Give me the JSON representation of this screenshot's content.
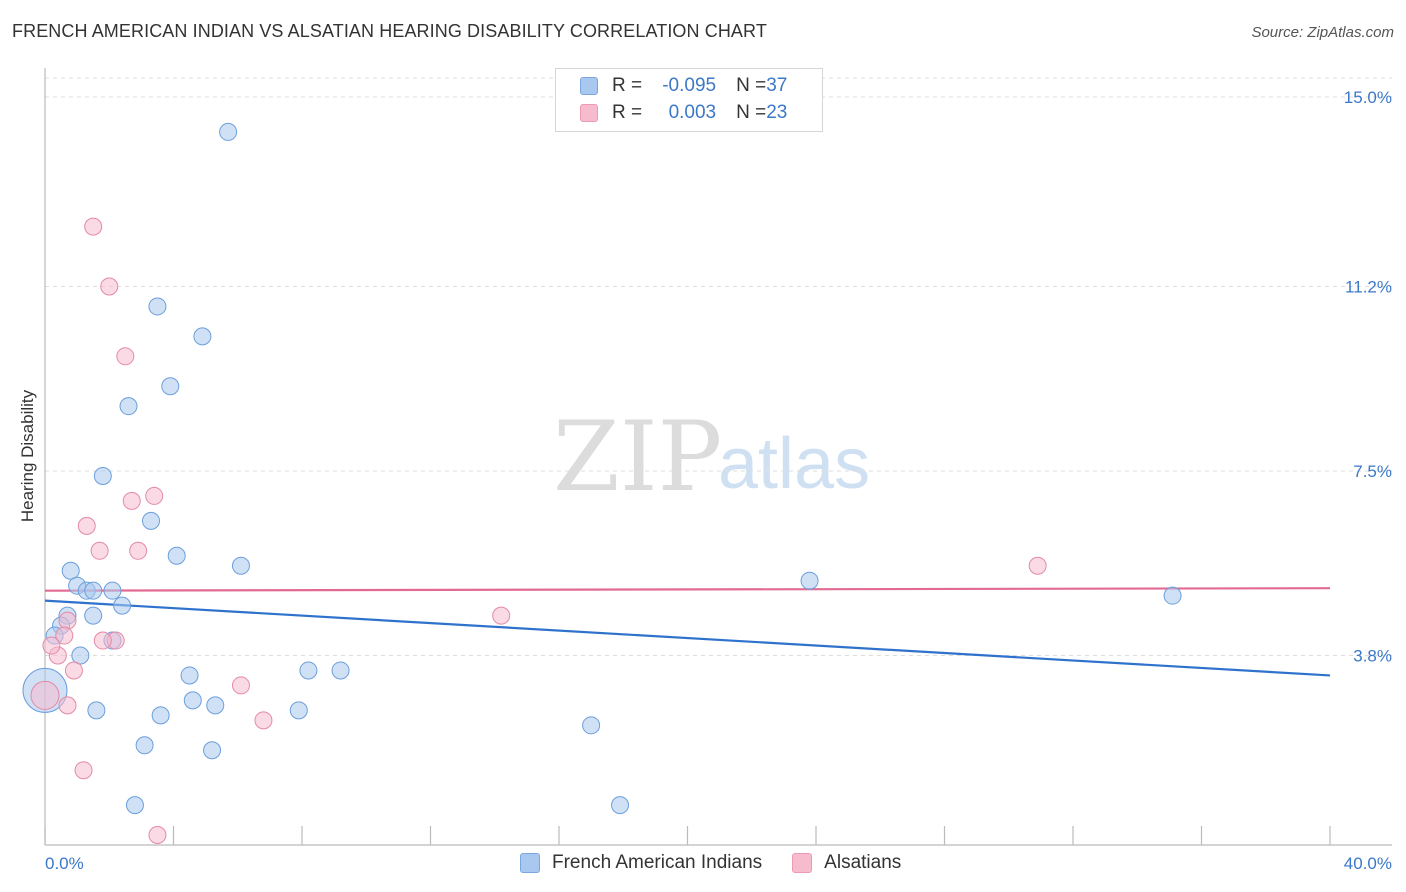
{
  "header": {
    "title": "FRENCH AMERICAN INDIAN VS ALSATIAN HEARING DISABILITY CORRELATION CHART",
    "source": "Source: ZipAtlas.com"
  },
  "watermark": {
    "zip": "ZIP",
    "atlas": "atlas"
  },
  "legend": {
    "rows": [
      {
        "r_label": "R = ",
        "r_value": "-0.095",
        "n_label": "N = ",
        "n_value": "37",
        "color": "#a9c8ef"
      },
      {
        "r_label": "R = ",
        "r_value": "0.003",
        "n_label": "N = ",
        "n_value": "23",
        "color": "#f6bccd"
      }
    ]
  },
  "bottom_legend": [
    {
      "label": "French American Indians",
      "color": "#a9c8ef"
    },
    {
      "label": "Alsatians",
      "color": "#f6bccd"
    }
  ],
  "chart_data": {
    "type": "scatter",
    "title": "FRENCH AMERICAN INDIAN VS ALSATIAN HEARING DISABILITY CORRELATION CHART",
    "xlabel": "",
    "ylabel": "Hearing Disability",
    "xlim": [
      0,
      40
    ],
    "ylim": [
      0,
      15.5
    ],
    "x_tick_labels": [
      "0.0%",
      "40.0%"
    ],
    "y_ticks": [
      3.8,
      7.5,
      11.2,
      15.0
    ],
    "y_tick_labels": [
      "3.8%",
      "7.5%",
      "11.2%",
      "15.0%"
    ],
    "grid": true,
    "legend_position": "top-center",
    "series": [
      {
        "name": "French American Indians",
        "color": "#a9c8ef",
        "stroke": "#6b9fdc",
        "line_color": "#2f72cc",
        "trend": {
          "x": [
            0,
            40
          ],
          "y": [
            4.9,
            3.4
          ]
        },
        "points": [
          {
            "x": 5.7,
            "y": 14.3
          },
          {
            "x": 3.5,
            "y": 10.8
          },
          {
            "x": 4.9,
            "y": 10.2
          },
          {
            "x": 3.9,
            "y": 9.2
          },
          {
            "x": 2.6,
            "y": 8.8
          },
          {
            "x": 1.8,
            "y": 7.4
          },
          {
            "x": 3.3,
            "y": 6.5
          },
          {
            "x": 4.1,
            "y": 5.8
          },
          {
            "x": 6.1,
            "y": 5.6
          },
          {
            "x": 0.8,
            "y": 5.5
          },
          {
            "x": 1.0,
            "y": 5.2
          },
          {
            "x": 1.3,
            "y": 5.1
          },
          {
            "x": 1.5,
            "y": 5.1
          },
          {
            "x": 2.4,
            "y": 4.8
          },
          {
            "x": 1.5,
            "y": 4.6
          },
          {
            "x": 0.7,
            "y": 4.6
          },
          {
            "x": 0.5,
            "y": 4.4
          },
          {
            "x": 0.3,
            "y": 4.2
          },
          {
            "x": 2.1,
            "y": 4.1
          },
          {
            "x": 1.1,
            "y": 3.8
          },
          {
            "x": 0.0,
            "y": 3.1
          },
          {
            "x": 4.5,
            "y": 3.4
          },
          {
            "x": 8.2,
            "y": 3.5
          },
          {
            "x": 9.2,
            "y": 3.5
          },
          {
            "x": 4.6,
            "y": 2.9
          },
          {
            "x": 5.3,
            "y": 2.8
          },
          {
            "x": 7.9,
            "y": 2.7
          },
          {
            "x": 1.6,
            "y": 2.7
          },
          {
            "x": 3.6,
            "y": 2.6
          },
          {
            "x": 17.0,
            "y": 2.4
          },
          {
            "x": 3.1,
            "y": 2.0
          },
          {
            "x": 5.2,
            "y": 1.9
          },
          {
            "x": 2.8,
            "y": 0.8
          },
          {
            "x": 17.9,
            "y": 0.8
          },
          {
            "x": 23.8,
            "y": 5.3
          },
          {
            "x": 35.1,
            "y": 5.0
          },
          {
            "x": 2.1,
            "y": 5.1
          }
        ]
      },
      {
        "name": "Alsatians",
        "color": "#f6bccd",
        "stroke": "#e58aa6",
        "line_color": "#e36b93",
        "trend": {
          "x": [
            0,
            40
          ],
          "y": [
            5.1,
            5.15
          ]
        },
        "points": [
          {
            "x": 1.5,
            "y": 12.4
          },
          {
            "x": 2.0,
            "y": 11.2
          },
          {
            "x": 2.5,
            "y": 9.8
          },
          {
            "x": 3.4,
            "y": 7.0
          },
          {
            "x": 2.7,
            "y": 6.9
          },
          {
            "x": 1.3,
            "y": 6.4
          },
          {
            "x": 1.7,
            "y": 5.9
          },
          {
            "x": 2.9,
            "y": 5.9
          },
          {
            "x": 0.7,
            "y": 4.5
          },
          {
            "x": 0.6,
            "y": 4.2
          },
          {
            "x": 2.2,
            "y": 4.1
          },
          {
            "x": 1.8,
            "y": 4.1
          },
          {
            "x": 0.4,
            "y": 3.8
          },
          {
            "x": 0.9,
            "y": 3.5
          },
          {
            "x": 6.1,
            "y": 3.2
          },
          {
            "x": 0.0,
            "y": 3.0
          },
          {
            "x": 0.7,
            "y": 2.8
          },
          {
            "x": 6.8,
            "y": 2.5
          },
          {
            "x": 1.2,
            "y": 1.5
          },
          {
            "x": 3.5,
            "y": 0.2
          },
          {
            "x": 14.2,
            "y": 4.6
          },
          {
            "x": 30.9,
            "y": 5.6
          },
          {
            "x": 0.2,
            "y": 4.0
          }
        ]
      }
    ]
  }
}
